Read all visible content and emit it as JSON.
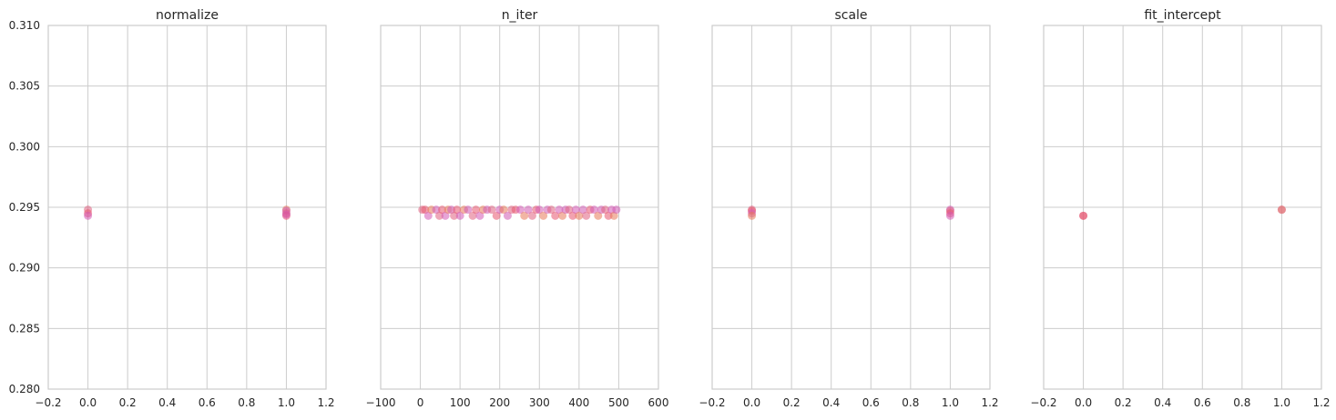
{
  "style": {
    "grid_color": "#cccccc",
    "axes_edge_color": "#cccccc",
    "text_color": "#262626",
    "point_colors": [
      "#e06080",
      "#e85570",
      "#d45ab4",
      "#e87a5a",
      "#cf59b3"
    ],
    "point_alpha": 0.55
  },
  "chart_data": [
    {
      "type": "scatter",
      "title": "normalize",
      "xlabel": "",
      "ylabel": "",
      "xlim": [
        -0.2,
        1.2
      ],
      "ylim": [
        0.28,
        0.31
      ],
      "xticks": [
        -0.2,
        0.0,
        0.2,
        0.4,
        0.6,
        0.8,
        1.0,
        1.2
      ],
      "xtick_labels": [
        "−0.2",
        "0.0",
        "0.2",
        "0.4",
        "0.6",
        "0.8",
        "1.0",
        "1.2"
      ],
      "yticks": [
        0.28,
        0.285,
        0.29,
        0.295,
        0.3,
        0.305,
        0.31
      ],
      "ytick_labels": [
        "0.280",
        "0.285",
        "0.290",
        "0.295",
        "0.300",
        "0.305",
        "0.310"
      ],
      "show_ytick_labels": true,
      "grid": true,
      "points": [
        {
          "x": 0,
          "y": 0.2948
        },
        {
          "x": 0,
          "y": 0.2945
        },
        {
          "x": 0,
          "y": 0.2943
        },
        {
          "x": 1,
          "y": 0.2948
        },
        {
          "x": 1,
          "y": 0.2947
        },
        {
          "x": 1,
          "y": 0.2945
        },
        {
          "x": 1,
          "y": 0.2943
        },
        {
          "x": 1,
          "y": 0.2944
        }
      ]
    },
    {
      "type": "scatter",
      "title": "n_iter",
      "xlabel": "",
      "ylabel": "",
      "xlim": [
        -100,
        600
      ],
      "ylim": [
        0.28,
        0.31
      ],
      "xticks": [
        -100,
        0,
        100,
        200,
        300,
        400,
        500,
        600
      ],
      "xtick_labels": [
        "−100",
        "0",
        "100",
        "200",
        "300",
        "400",
        "500",
        "600"
      ],
      "yticks": [
        0.28,
        0.285,
        0.29,
        0.295,
        0.3,
        0.305,
        0.31
      ],
      "ytick_labels": [
        "0.280",
        "0.285",
        "0.290",
        "0.295",
        "0.300",
        "0.305",
        "0.310"
      ],
      "show_ytick_labels": false,
      "grid": true,
      "points": [
        {
          "x": 5,
          "y": 0.2948
        },
        {
          "x": 12,
          "y": 0.2948
        },
        {
          "x": 20,
          "y": 0.2943
        },
        {
          "x": 28,
          "y": 0.2948
        },
        {
          "x": 40,
          "y": 0.2948
        },
        {
          "x": 48,
          "y": 0.2943
        },
        {
          "x": 55,
          "y": 0.2948
        },
        {
          "x": 63,
          "y": 0.2943
        },
        {
          "x": 70,
          "y": 0.2948
        },
        {
          "x": 78,
          "y": 0.2948
        },
        {
          "x": 85,
          "y": 0.2943
        },
        {
          "x": 92,
          "y": 0.2948
        },
        {
          "x": 100,
          "y": 0.2943
        },
        {
          "x": 110,
          "y": 0.2948
        },
        {
          "x": 120,
          "y": 0.2948
        },
        {
          "x": 132,
          "y": 0.2943
        },
        {
          "x": 140,
          "y": 0.2948
        },
        {
          "x": 150,
          "y": 0.2943
        },
        {
          "x": 158,
          "y": 0.2948
        },
        {
          "x": 168,
          "y": 0.2948
        },
        {
          "x": 180,
          "y": 0.2948
        },
        {
          "x": 192,
          "y": 0.2943
        },
        {
          "x": 200,
          "y": 0.2948
        },
        {
          "x": 210,
          "y": 0.2948
        },
        {
          "x": 220,
          "y": 0.2943
        },
        {
          "x": 230,
          "y": 0.2948
        },
        {
          "x": 240,
          "y": 0.2948
        },
        {
          "x": 252,
          "y": 0.2948
        },
        {
          "x": 262,
          "y": 0.2943
        },
        {
          "x": 272,
          "y": 0.2948
        },
        {
          "x": 282,
          "y": 0.2943
        },
        {
          "x": 292,
          "y": 0.2948
        },
        {
          "x": 300,
          "y": 0.2948
        },
        {
          "x": 310,
          "y": 0.2943
        },
        {
          "x": 320,
          "y": 0.2948
        },
        {
          "x": 330,
          "y": 0.2948
        },
        {
          "x": 340,
          "y": 0.2943
        },
        {
          "x": 350,
          "y": 0.2948
        },
        {
          "x": 358,
          "y": 0.2943
        },
        {
          "x": 366,
          "y": 0.2948
        },
        {
          "x": 375,
          "y": 0.2948
        },
        {
          "x": 384,
          "y": 0.2943
        },
        {
          "x": 392,
          "y": 0.2948
        },
        {
          "x": 400,
          "y": 0.2943
        },
        {
          "x": 410,
          "y": 0.2948
        },
        {
          "x": 418,
          "y": 0.2943
        },
        {
          "x": 428,
          "y": 0.2948
        },
        {
          "x": 438,
          "y": 0.2948
        },
        {
          "x": 448,
          "y": 0.2943
        },
        {
          "x": 456,
          "y": 0.2948
        },
        {
          "x": 466,
          "y": 0.2948
        },
        {
          "x": 474,
          "y": 0.2943
        },
        {
          "x": 482,
          "y": 0.2948
        },
        {
          "x": 488,
          "y": 0.2943
        },
        {
          "x": 494,
          "y": 0.2948
        }
      ]
    },
    {
      "type": "scatter",
      "title": "scale",
      "xlabel": "",
      "ylabel": "",
      "xlim": [
        -0.2,
        1.2
      ],
      "ylim": [
        0.28,
        0.31
      ],
      "xticks": [
        -0.2,
        0.0,
        0.2,
        0.4,
        0.6,
        0.8,
        1.0,
        1.2
      ],
      "xtick_labels": [
        "−0.2",
        "0.0",
        "0.2",
        "0.4",
        "0.6",
        "0.8",
        "1.0",
        "1.2"
      ],
      "yticks": [
        0.28,
        0.285,
        0.29,
        0.295,
        0.3,
        0.305,
        0.31
      ],
      "ytick_labels": [
        "0.280",
        "0.285",
        "0.290",
        "0.295",
        "0.300",
        "0.305",
        "0.310"
      ],
      "show_ytick_labels": false,
      "grid": true,
      "points": [
        {
          "x": 0,
          "y": 0.2948
        },
        {
          "x": 0,
          "y": 0.2947
        },
        {
          "x": 0,
          "y": 0.2945
        },
        {
          "x": 0,
          "y": 0.2943
        },
        {
          "x": 1,
          "y": 0.2948
        },
        {
          "x": 1,
          "y": 0.2947
        },
        {
          "x": 1,
          "y": 0.2945
        },
        {
          "x": 1,
          "y": 0.2943
        }
      ]
    },
    {
      "type": "scatter",
      "title": "fit_intercept",
      "xlabel": "",
      "ylabel": "",
      "xlim": [
        -0.2,
        1.2
      ],
      "ylim": [
        0.28,
        0.31
      ],
      "xticks": [
        -0.2,
        0.0,
        0.2,
        0.4,
        0.6,
        0.8,
        1.0,
        1.2
      ],
      "xtick_labels": [
        "−0.2",
        "0.0",
        "0.2",
        "0.4",
        "0.6",
        "0.8",
        "1.0",
        "1.2"
      ],
      "yticks": [
        0.28,
        0.285,
        0.29,
        0.295,
        0.3,
        0.305,
        0.31
      ],
      "ytick_labels": [
        "0.280",
        "0.285",
        "0.290",
        "0.295",
        "0.300",
        "0.305",
        "0.310"
      ],
      "show_ytick_labels": false,
      "grid": true,
      "points": [
        {
          "x": 0,
          "y": 0.2943
        },
        {
          "x": 0,
          "y": 0.2943
        },
        {
          "x": 1,
          "y": 0.2948
        },
        {
          "x": 1,
          "y": 0.2948
        }
      ]
    }
  ]
}
